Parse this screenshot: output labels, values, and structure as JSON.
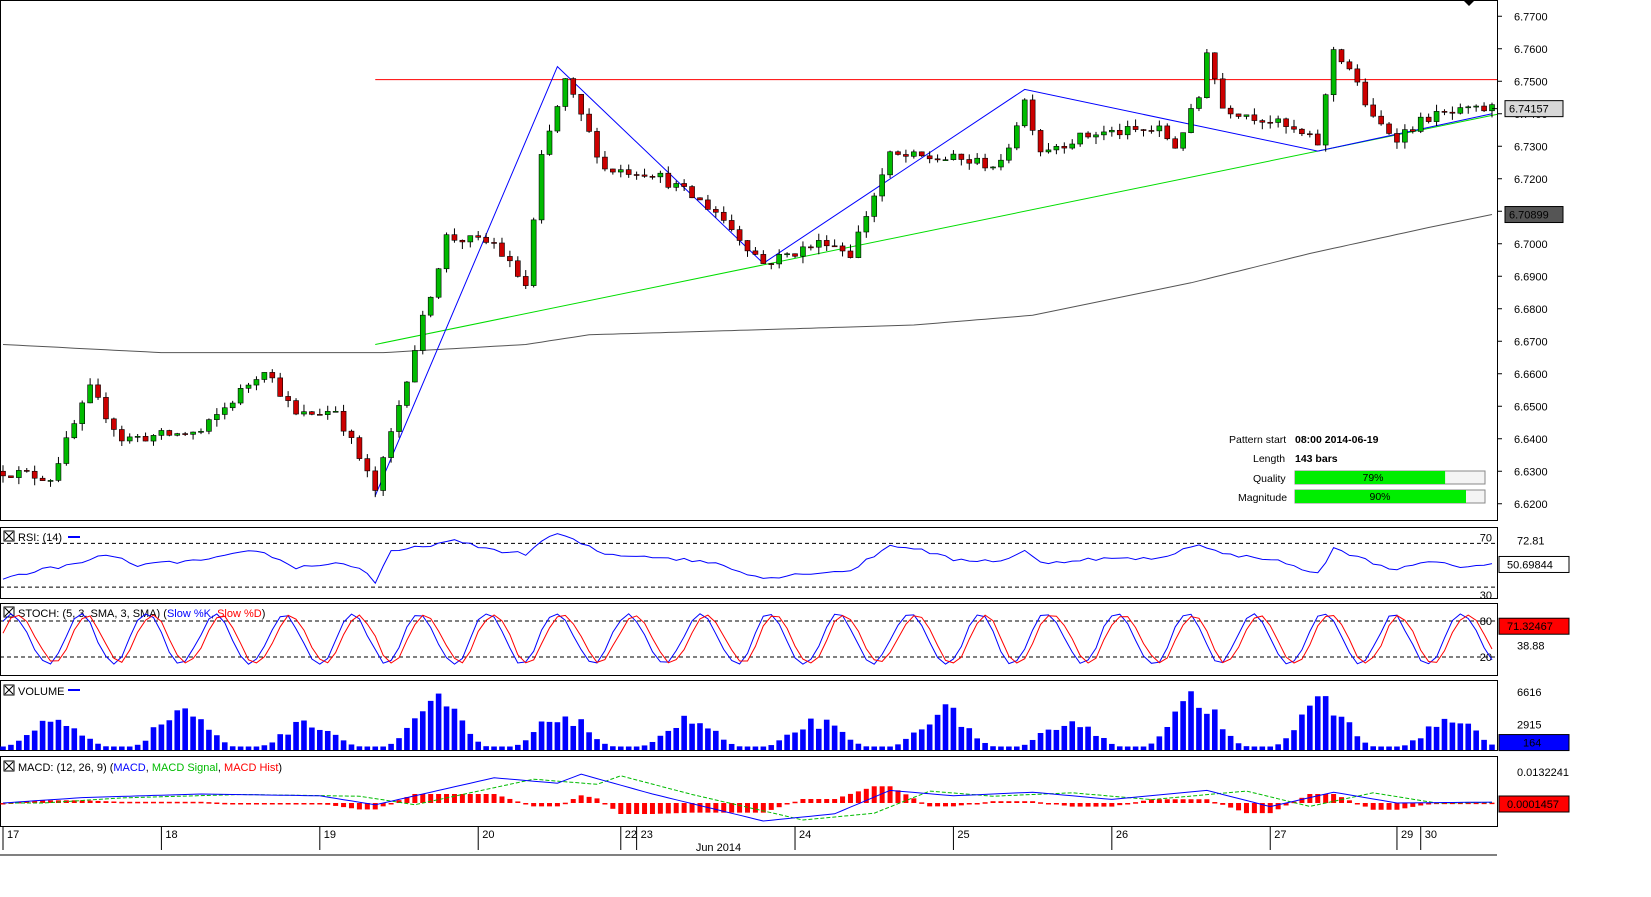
{
  "chart_data": {
    "type": "candlestick",
    "instrument_pattern": "triangle",
    "price": {
      "ylim": [
        6.615,
        6.775
      ],
      "ticks": [
        "6.7700",
        "6.7600",
        "6.7500",
        "6.7400",
        "6.7300",
        "6.7200",
        "6.7100",
        "6.7000",
        "6.6900",
        "6.6800",
        "6.6700",
        "6.6600",
        "6.6500",
        "6.6400",
        "6.6300",
        "6.6200"
      ],
      "last_price_label": "6.74157",
      "ma_label": "6.70899",
      "resistance_level": 6.7505,
      "support_line": {
        "from_bar": 47,
        "from_value": 6.669,
        "to_bar": 188,
        "to_value": 6.7395
      },
      "zigzag_bars": [
        47,
        70,
        96,
        129,
        166,
        188
      ],
      "zigzag_values": [
        6.6225,
        6.7545,
        6.694,
        6.7475,
        6.7285,
        6.74
      ],
      "ma_anchors": [
        [
          0,
          6.669
        ],
        [
          20,
          6.6665
        ],
        [
          48,
          6.6665
        ],
        [
          66,
          6.669
        ],
        [
          74,
          6.672
        ],
        [
          95,
          6.6735
        ],
        [
          115,
          6.675
        ],
        [
          130,
          6.678
        ],
        [
          140,
          6.683
        ],
        [
          150,
          6.688
        ],
        [
          165,
          6.697
        ],
        [
          180,
          6.705
        ],
        [
          188,
          6.709
        ]
      ],
      "price_anchors": [
        [
          0,
          6.63
        ],
        [
          6,
          6.628
        ],
        [
          11,
          6.655
        ],
        [
          15,
          6.64
        ],
        [
          25,
          6.642
        ],
        [
          33,
          6.662
        ],
        [
          37,
          6.647
        ],
        [
          42,
          6.649
        ],
        [
          47,
          6.624
        ],
        [
          52,
          6.668
        ],
        [
          56,
          6.702
        ],
        [
          62,
          6.7
        ],
        [
          66,
          6.687
        ],
        [
          68,
          6.726
        ],
        [
          71,
          6.75
        ],
        [
          76,
          6.723
        ],
        [
          82,
          6.722
        ],
        [
          90,
          6.71
        ],
        [
          96,
          6.694
        ],
        [
          104,
          6.701
        ],
        [
          107,
          6.697
        ],
        [
          112,
          6.727
        ],
        [
          120,
          6.726
        ],
        [
          126,
          6.724
        ],
        [
          129,
          6.744
        ],
        [
          131,
          6.729
        ],
        [
          138,
          6.734
        ],
        [
          146,
          6.735
        ],
        [
          148,
          6.73
        ],
        [
          151,
          6.745
        ],
        [
          152,
          6.76
        ],
        [
          154,
          6.742
        ],
        [
          160,
          6.738
        ],
        [
          166,
          6.731
        ],
        [
          167,
          6.745
        ],
        [
          168,
          6.76
        ],
        [
          170,
          6.754
        ],
        [
          173,
          6.738
        ],
        [
          176,
          6.733
        ],
        [
          180,
          6.739
        ],
        [
          186,
          6.741
        ],
        [
          188,
          6.7416
        ]
      ]
    },
    "pattern_info": {
      "pattern_start_label": "Pattern start",
      "pattern_start": "08:00 2014-06-19",
      "length_label": "Length",
      "length": "143 bars",
      "quality_label": "Quality",
      "quality": 79,
      "quality_text": "79%",
      "magnitude_label": "Magnitude",
      "magnitude": 90,
      "magnitude_text": "90%"
    },
    "rsi": {
      "title": "RSI: (14)",
      "levels": [
        "70",
        "30"
      ],
      "ylim": [
        20,
        85
      ],
      "right_ticks": [
        "72.81"
      ],
      "last_label": "50.69844",
      "anchors": [
        [
          0,
          38
        ],
        [
          5,
          46
        ],
        [
          10,
          52
        ],
        [
          13,
          60
        ],
        [
          17,
          50
        ],
        [
          22,
          53
        ],
        [
          26,
          55
        ],
        [
          32,
          64
        ],
        [
          37,
          48
        ],
        [
          42,
          52
        ],
        [
          45,
          48
        ],
        [
          46,
          42
        ],
        [
          47,
          34
        ],
        [
          49,
          62
        ],
        [
          52,
          66
        ],
        [
          55,
          70
        ],
        [
          57,
          72
        ],
        [
          62,
          64
        ],
        [
          66,
          60
        ],
        [
          68,
          72
        ],
        [
          70,
          79
        ],
        [
          73,
          70
        ],
        [
          76,
          60
        ],
        [
          82,
          58
        ],
        [
          90,
          52
        ],
        [
          96,
          38
        ],
        [
          102,
          43
        ],
        [
          107,
          45
        ],
        [
          112,
          68
        ],
        [
          115,
          66
        ],
        [
          120,
          55
        ],
        [
          126,
          54
        ],
        [
          129,
          63
        ],
        [
          131,
          52
        ],
        [
          138,
          56
        ],
        [
          146,
          56
        ],
        [
          151,
          70
        ],
        [
          154,
          60
        ],
        [
          160,
          56
        ],
        [
          166,
          42
        ],
        [
          168,
          65
        ],
        [
          171,
          58
        ],
        [
          173,
          52
        ],
        [
          176,
          46
        ],
        [
          180,
          53
        ],
        [
          184,
          49
        ],
        [
          188,
          50.7
        ]
      ]
    },
    "stoch": {
      "title_prefix": "STOCH: (5, 3, SMA, 3, SMA) (",
      "k_name": "Slow %K",
      "sep": ", ",
      "d_name": "Slow %D",
      "title_suffix": ")",
      "levels": [
        "80",
        "20"
      ],
      "right_ticks": [
        "38.88"
      ],
      "last_label": "71.32467",
      "k_color": "#0000ff",
      "d_color": "#ff0000"
    },
    "volume": {
      "title": "VOLUME",
      "ticks": [
        "6616",
        "2915"
      ],
      "last_label": "164",
      "ymax": 8000,
      "color": "#0000ff",
      "session_peaks": [
        0.6,
        0.85,
        0.55,
        1.0,
        0.7,
        0.6,
        0.55,
        0.8,
        0.6,
        1.05,
        0.95,
        0.6
      ]
    },
    "macd": {
      "title_prefix": "MACD: (12, 26, 9) (",
      "macd_name": "MACD",
      "signal_name": "MACD Signal",
      "hist_name": "MACD Hist",
      "title_suffix": ")",
      "ticks": [
        "0.0132241"
      ],
      "last_label": "0.0001457",
      "macd_color": "#0000ff",
      "signal_color": "#00bb00",
      "hist_color": "#ff0000"
    },
    "x_axis": {
      "date_labels": [
        "17",
        "18",
        "19",
        "20",
        "22",
        "23",
        "24",
        "25",
        "26",
        "27",
        "29",
        "30"
      ],
      "date_bar_positions": [
        0,
        20,
        40,
        60,
        78,
        80,
        100,
        120,
        140,
        160,
        176,
        179
      ],
      "month_label": "Jun 2014",
      "month_bar_position": 90
    },
    "colors": {
      "up_candle": "#00bb00",
      "down_candle": "#cc0000",
      "resistance": "#ff0000",
      "support": "#00dd00",
      "zigzag": "#0000ff",
      "moving_average": "#555555",
      "quality_fill": "#00ee00"
    }
  }
}
